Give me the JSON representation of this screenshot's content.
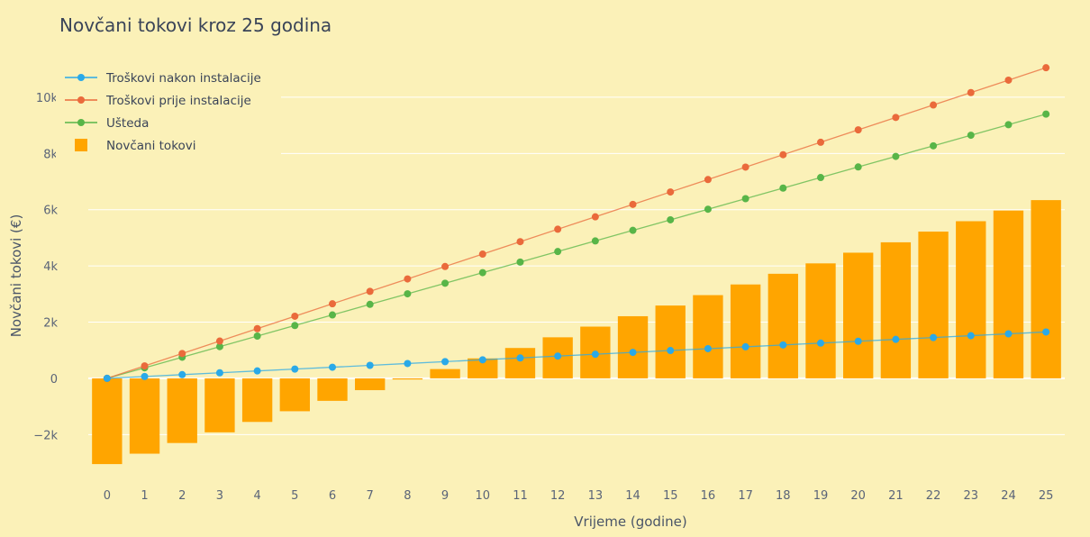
{
  "chart_data": {
    "type": "bar",
    "title": "Novčani tokovi kroz 25 godina",
    "xlabel": "Vrijeme (godine)",
    "ylabel": "Novčani tokovi (€)",
    "x": [
      0,
      1,
      2,
      3,
      4,
      5,
      6,
      7,
      8,
      9,
      10,
      11,
      12,
      13,
      14,
      15,
      16,
      17,
      18,
      19,
      20,
      21,
      22,
      23,
      24,
      25
    ],
    "ylim": [
      -3400,
      11600
    ],
    "yticks": [
      -2000,
      0,
      2000,
      4000,
      6000,
      8000,
      10000
    ],
    "ytick_labels": [
      "−2k",
      "0",
      "2k",
      "4k",
      "6k",
      "8k",
      "10k"
    ],
    "grid": true,
    "legend_position": "top-left",
    "background": "#fbf1b8",
    "series": [
      {
        "name": "Troškovi nakon instalacije",
        "type": "line",
        "color": "#2aa9e8",
        "values": [
          0,
          66,
          132,
          198,
          264,
          330,
          396,
          462,
          528,
          594,
          660,
          726,
          792,
          858,
          924,
          990,
          1056,
          1122,
          1188,
          1254,
          1320,
          1386,
          1452,
          1518,
          1584,
          1650
        ]
      },
      {
        "name": "Troškovi prije instalacije",
        "type": "line",
        "color": "#ea6a3b",
        "values": [
          0,
          442,
          884,
          1326,
          1768,
          2210,
          2652,
          3094,
          3536,
          3978,
          4420,
          4862,
          5304,
          5746,
          6188,
          6630,
          7072,
          7514,
          7956,
          8398,
          8840,
          9282,
          9724,
          10166,
          10608,
          11050
        ]
      },
      {
        "name": "Ušteda",
        "type": "line",
        "color": "#58b548",
        "values": [
          0,
          376,
          752,
          1128,
          1504,
          1880,
          2256,
          2632,
          3008,
          3384,
          3760,
          4136,
          4512,
          4888,
          5264,
          5640,
          6016,
          6392,
          6768,
          7144,
          7520,
          7896,
          8272,
          8648,
          9024,
          9400
        ]
      },
      {
        "name": "Novčani tokovi",
        "type": "bar",
        "color": "#ffa500",
        "values": [
          -3050,
          -2680,
          -2300,
          -1920,
          -1550,
          -1170,
          -800,
          -420,
          -40,
          330,
          710,
          1080,
          1460,
          1840,
          2210,
          2590,
          2960,
          3340,
          3720,
          4090,
          4470,
          4840,
          5220,
          5590,
          5970,
          6340
        ]
      }
    ]
  }
}
